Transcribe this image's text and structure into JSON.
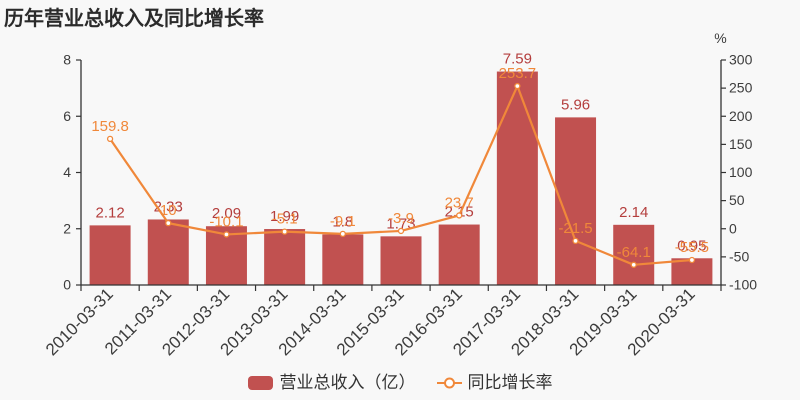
{
  "title": "历年营业总收入及同比增长率",
  "colors": {
    "background": "#f8f8f8",
    "bar": "#c15150",
    "bar_label": "#b43e3d",
    "line": "#f0883a",
    "line_label": "#f0883a",
    "marker_fill": "#ffffff",
    "axis": "#333333",
    "tick_text": "#3c3c3c",
    "legend_text": "#333333",
    "title_text": "#2b2b2b"
  },
  "legend": {
    "items": [
      {
        "label": "营业总收入（亿）",
        "series": "bar"
      },
      {
        "label": "同比增长率",
        "series": "line"
      }
    ]
  },
  "chart_data": {
    "type": "bar+line",
    "title": "历年营业总收入及同比增长率",
    "categories": [
      "2010-03-31",
      "2011-03-31",
      "2012-03-31",
      "2013-03-31",
      "2014-03-31",
      "2015-03-31",
      "2016-03-31",
      "2017-03-31",
      "2018-03-31",
      "2019-03-31",
      "2020-03-31"
    ],
    "series": [
      {
        "name": "营业总收入（亿）",
        "type": "bar",
        "values": [
          2.12,
          2.33,
          2.09,
          1.99,
          1.8,
          1.73,
          2.15,
          7.59,
          5.96,
          2.14,
          0.95
        ],
        "labels": [
          "2.12",
          "2.33",
          "2.09",
          "1.99",
          "1.8",
          "1.73",
          "2.15",
          "7.59",
          "5.96",
          "2.14",
          "0.95"
        ],
        "axis": "left"
      },
      {
        "name": "同比增长率",
        "type": "line",
        "values": [
          159.8,
          10,
          -10.1,
          -5.1,
          -9.1,
          -3.9,
          23.7,
          253.7,
          -21.5,
          -64.1,
          -55.5
        ],
        "labels": [
          "159.8",
          "10",
          "-10.1",
          "-5.1",
          "-9.1",
          "-3.9",
          "23.7",
          "253.7",
          "-21.5",
          "-64.1",
          "-55.5"
        ],
        "axis": "right"
      }
    ],
    "left_axis": {
      "min": 0,
      "max": 8,
      "ticks": [
        "0",
        "2",
        "4",
        "6",
        "8"
      ]
    },
    "right_axis": {
      "min": -100,
      "max": 300,
      "ticks": [
        "-100",
        "-50",
        "0",
        "50",
        "100",
        "150",
        "200",
        "250",
        "300"
      ],
      "unit": "%"
    },
    "grid": false,
    "legend_position": "bottom"
  }
}
